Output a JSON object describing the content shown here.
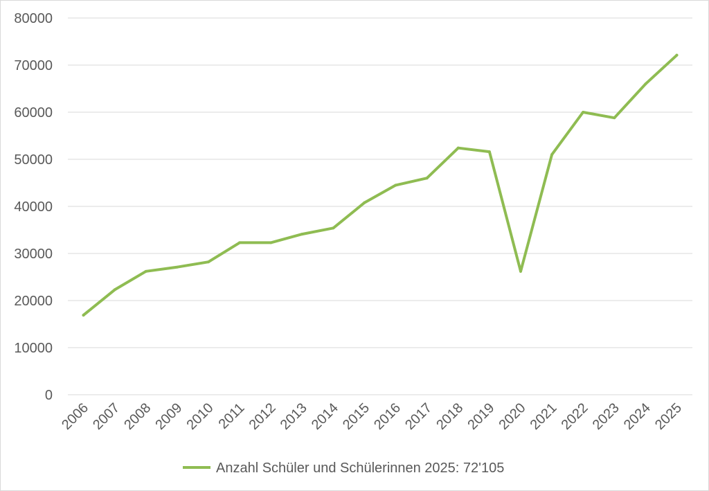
{
  "chart_data": {
    "type": "line",
    "title": "",
    "xlabel": "",
    "ylabel": "",
    "categories": [
      "2006",
      "2007",
      "2008",
      "2009",
      "2010",
      "2011",
      "2012",
      "2013",
      "2014",
      "2015",
      "2016",
      "2017",
      "2018",
      "2019",
      "2020",
      "2021",
      "2022",
      "2023",
      "2024",
      "2025"
    ],
    "series": [
      {
        "name": "Anzahl Schüler und Schülerinnen 2025: 72'105",
        "color": "#8fbc52",
        "values": [
          16900,
          22300,
          26200,
          27100,
          28200,
          32300,
          32300,
          34100,
          35400,
          40800,
          44500,
          46000,
          52400,
          51600,
          26200,
          51000,
          60000,
          58800,
          66000,
          72105
        ]
      }
    ],
    "ylim": [
      0,
      80000
    ],
    "yticks": [
      "0",
      "10000",
      "20000",
      "30000",
      "40000",
      "50000",
      "60000",
      "70000",
      "80000"
    ],
    "grid": true,
    "legend_position": "bottom"
  }
}
